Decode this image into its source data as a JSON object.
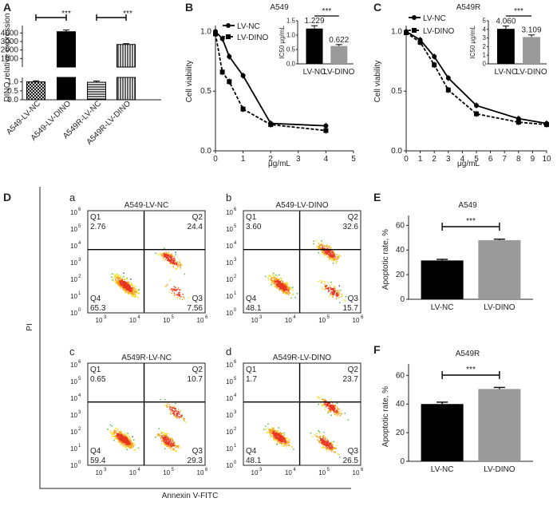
{
  "panel_letters": {
    "A": "A",
    "B": "B",
    "C": "C",
    "D": "D",
    "E": "E",
    "F": "F",
    "a": "a",
    "b": "b",
    "c": "c",
    "d": "d"
  },
  "chart_data": [
    {
      "id": "A",
      "type": "bar",
      "title": "",
      "ylabel": "DINO relative expression",
      "categories": [
        "A549-LV-NC",
        "A549-LV-DINO",
        "A549R-LV-NC",
        "A549R-LV-DINO"
      ],
      "values": [
        1.0,
        4150,
        0.98,
        2650
      ],
      "errors": [
        0.06,
        200,
        0.07,
        100
      ],
      "axis_break": {
        "lower_ticks": [
          "0.0",
          "0.5",
          "1.0"
        ],
        "upper_ticks": [
          "1000",
          "2000",
          "3000",
          "4000"
        ]
      },
      "significance": [
        "***",
        "***"
      ],
      "patterns": [
        "crosshatch",
        "solid",
        "horizontal",
        "vertical"
      ]
    },
    {
      "id": "B",
      "type": "line",
      "title": "A549",
      "xlabel": "μg/mL",
      "ylabel": "Cell viability",
      "xticks": [
        "0",
        "1",
        "2",
        "3",
        "4",
        "5"
      ],
      "yticks": [
        "0.0",
        "0.5",
        "1.0"
      ],
      "xlim": [
        0,
        5
      ],
      "ylim": [
        0,
        1.05
      ],
      "series": [
        {
          "name": "LV-NC",
          "x": [
            0,
            0.25,
            0.5,
            1,
            2,
            4
          ],
          "y": [
            1.0,
            0.94,
            0.79,
            0.63,
            0.23,
            0.21
          ]
        },
        {
          "name": "LV-DINO",
          "x": [
            0,
            0.25,
            0.5,
            1,
            2,
            4
          ],
          "y": [
            0.98,
            0.66,
            0.58,
            0.35,
            0.22,
            0.17
          ]
        }
      ],
      "inset": {
        "ylabel": "IC50 μg/mL",
        "categories": [
          "LV-NC",
          "LV-DINO"
        ],
        "values": [
          1.229,
          0.622
        ],
        "labels": [
          "1.229",
          "0.622"
        ],
        "yticks": [
          "0.0",
          "0.5",
          "1.0",
          "1.5"
        ],
        "ymax": 1.5,
        "significance": "***"
      }
    },
    {
      "id": "C",
      "type": "line",
      "title": "A549R",
      "xlabel": "μg/mL",
      "ylabel": "Cell viability",
      "xticks": [
        "0",
        "1",
        "2",
        "3",
        "4",
        "5",
        "6",
        "7",
        "8",
        "9",
        "10"
      ],
      "yticks": [
        "0.0",
        "0.5",
        "1.0"
      ],
      "xlim": [
        0,
        10
      ],
      "ylim": [
        0,
        1.05
      ],
      "series": [
        {
          "name": "LV-NC",
          "x": [
            0,
            1,
            2,
            3,
            5,
            8,
            10
          ],
          "y": [
            1.0,
            0.93,
            0.79,
            0.61,
            0.38,
            0.27,
            0.23
          ]
        },
        {
          "name": "LV-DINO",
          "x": [
            0,
            1,
            2,
            3,
            5,
            8,
            10
          ],
          "y": [
            0.99,
            0.91,
            0.72,
            0.51,
            0.31,
            0.24,
            0.22
          ]
        }
      ],
      "inset": {
        "ylabel": "IC50 μg/mL",
        "categories": [
          "LV-NC",
          "LV-DINO"
        ],
        "values": [
          4.06,
          3.109
        ],
        "labels": [
          "4.060",
          "3.109"
        ],
        "yticks": [
          "0",
          "1",
          "2",
          "3",
          "4",
          "5"
        ],
        "ymax": 5,
        "significance": "***"
      }
    },
    {
      "id": "D",
      "type": "scatter",
      "xlabel": "Annexin V-FITC",
      "ylabel": "PI",
      "log_ticks_x": [
        "3",
        "4",
        "5",
        "6"
      ],
      "log_ticks_y": [
        "0",
        "1",
        "2",
        "3",
        "4",
        "5",
        "6"
      ],
      "plots": [
        {
          "letter": "a",
          "title": "A549-LV-NC",
          "Q1": "2.76",
          "Q2": "24.4",
          "Q3": "7.56",
          "Q4": "65.3"
        },
        {
          "letter": "b",
          "title": "A549-LV-DINO",
          "Q1": "3.60",
          "Q2": "32.6",
          "Q3": "15.7",
          "Q4": "48.1"
        },
        {
          "letter": "c",
          "title": "A549R-LV-NC",
          "Q1": "0.65",
          "Q2": "10.7",
          "Q3": "29.3",
          "Q4": "59.4"
        },
        {
          "letter": "d",
          "title": "A549R-LV-DINO",
          "Q1": "1.7",
          "Q2": "23.7",
          "Q3": "26.5",
          "Q4": "48.1"
        }
      ]
    },
    {
      "id": "E",
      "type": "bar",
      "title": "A549",
      "ylabel": "Apoptotic rate, %",
      "categories": [
        "LV-NC",
        "LV-DINO"
      ],
      "values": [
        31.5,
        48
      ],
      "errors": [
        0.9,
        0.8
      ],
      "yticks": [
        "0",
        "20",
        "40",
        "60"
      ],
      "ylim": [
        0,
        68
      ],
      "colors": [
        "#000000",
        "#9a9a9a"
      ],
      "significance": "***"
    },
    {
      "id": "F",
      "type": "bar",
      "title": "A549R",
      "ylabel": "Apoptotic rate, %",
      "categories": [
        "LV-NC",
        "LV-DINO"
      ],
      "values": [
        40,
        50.5
      ],
      "errors": [
        1.3,
        1.1
      ],
      "yticks": [
        "0",
        "20",
        "40",
        "60"
      ],
      "ylim": [
        0,
        68
      ],
      "colors": [
        "#000000",
        "#9a9a9a"
      ],
      "significance": "***"
    }
  ]
}
